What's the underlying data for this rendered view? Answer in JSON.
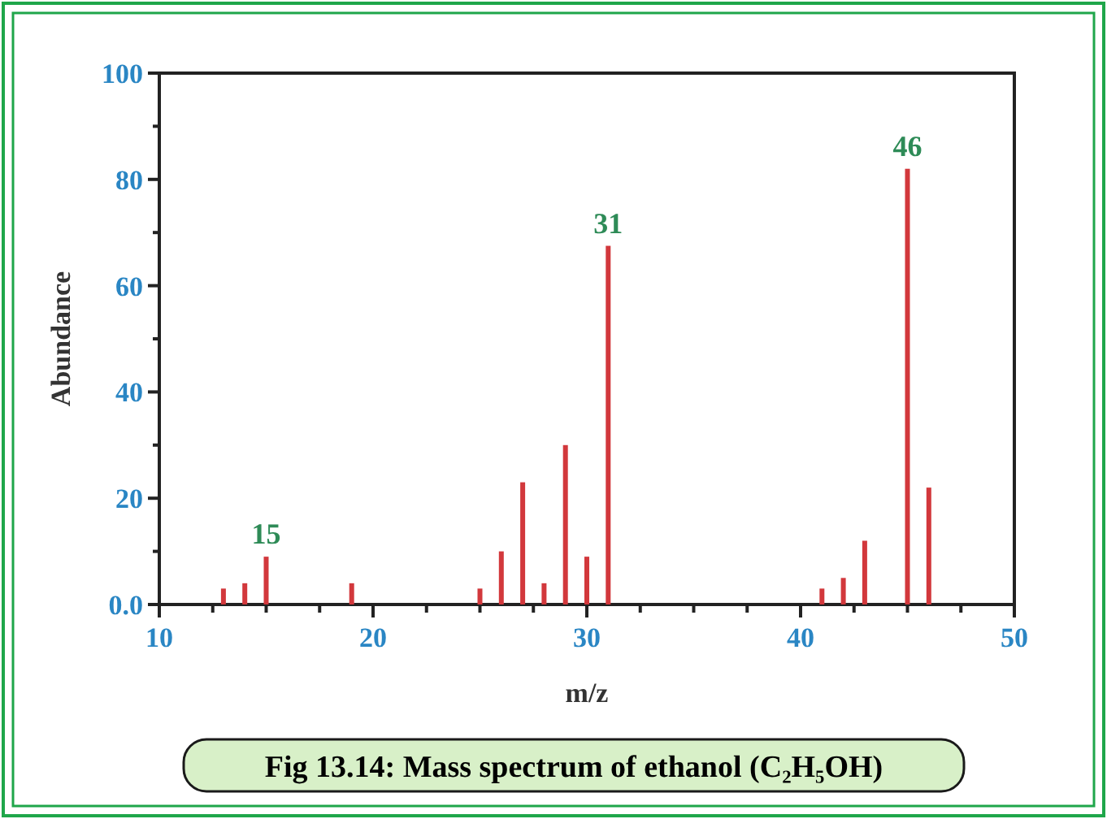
{
  "chart_data": {
    "type": "bar",
    "title": "Fig 13.14: Mass spectrum of ethanol (C₂H₅OH)",
    "xlabel": "m/z",
    "ylabel": "Abundance",
    "x": [
      13,
      14,
      15,
      19,
      25,
      26,
      27,
      28,
      29,
      30,
      31,
      41,
      42,
      43,
      45,
      46
    ],
    "values": [
      3,
      4,
      9,
      4,
      3,
      10,
      23,
      4,
      30,
      9,
      67.5,
      3,
      5,
      12,
      82,
      22
    ],
    "color": "#d2383c",
    "xlim": [
      10,
      50
    ],
    "xticks": [
      10,
      {
        "value": 12.5,
        "label": null
      },
      {
        "value": 15,
        "label": null
      },
      {
        "value": 17.5,
        "label": null
      },
      20,
      {
        "value": 22.5,
        "label": null
      },
      {
        "value": 25,
        "label": null
      },
      {
        "value": 27.5,
        "label": null
      },
      30,
      {
        "value": 32.5,
        "label": null
      },
      {
        "value": 35,
        "label": null
      },
      {
        "value": 37.5,
        "label": null
      },
      40,
      {
        "value": 42.5,
        "label": null
      },
      {
        "value": 45,
        "label": null
      },
      {
        "value": 47.5,
        "label": null
      },
      50
    ],
    "ylim": [
      0,
      100
    ],
    "yticks": [
      {
        "value": 0,
        "label": "0.0"
      },
      {
        "value": 10,
        "label": null
      },
      20,
      {
        "value": 30,
        "label": null
      },
      40,
      {
        "value": 50,
        "label": null
      },
      60,
      {
        "value": 70,
        "label": null
      },
      80,
      {
        "value": 90,
        "label": null
      },
      100
    ],
    "annotations": [
      {
        "text": "15",
        "x": 15,
        "y": 9
      },
      {
        "text": "31",
        "x": 31,
        "y": 67.5
      },
      {
        "text": "46",
        "x": 45,
        "y": 82
      }
    ]
  }
}
